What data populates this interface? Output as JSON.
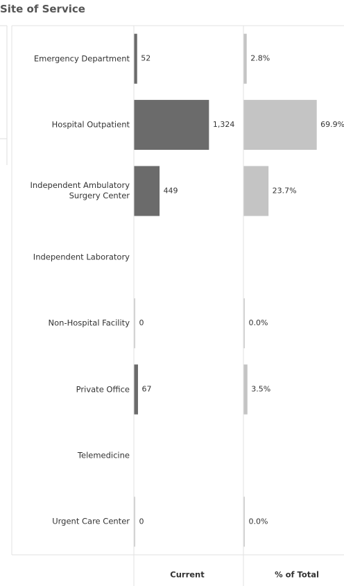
{
  "chart_data": {
    "type": "bar",
    "orientation": "horizontal",
    "title": "Site of Service",
    "categories": [
      "Emergency Department",
      "Hospital Outpatient",
      "Independent Ambulatory Surgery Center",
      "Independent Laboratory",
      "Non-Hospital Facility",
      "Private Office",
      "Telemedicine",
      "Urgent Care Center"
    ],
    "series": [
      {
        "name": "Current",
        "color": "#6b6b6b",
        "xlim": [
          0,
          1940
        ],
        "values": [
          52,
          1324,
          449,
          null,
          0,
          67,
          null,
          0
        ],
        "value_labels": [
          "52",
          "1,324",
          "449",
          null,
          "0",
          "67",
          null,
          "0"
        ]
      },
      {
        "name": "% of Total",
        "color": "#c4c4c4",
        "xlim": [
          0,
          105
        ],
        "values": [
          2.8,
          69.9,
          23.7,
          null,
          0.0,
          3.5,
          null,
          0.0
        ],
        "value_labels": [
          "2.8%",
          "69.9%",
          "23.7%",
          null,
          "0.0%",
          "3.5%",
          null,
          "0.0%"
        ]
      }
    ]
  }
}
